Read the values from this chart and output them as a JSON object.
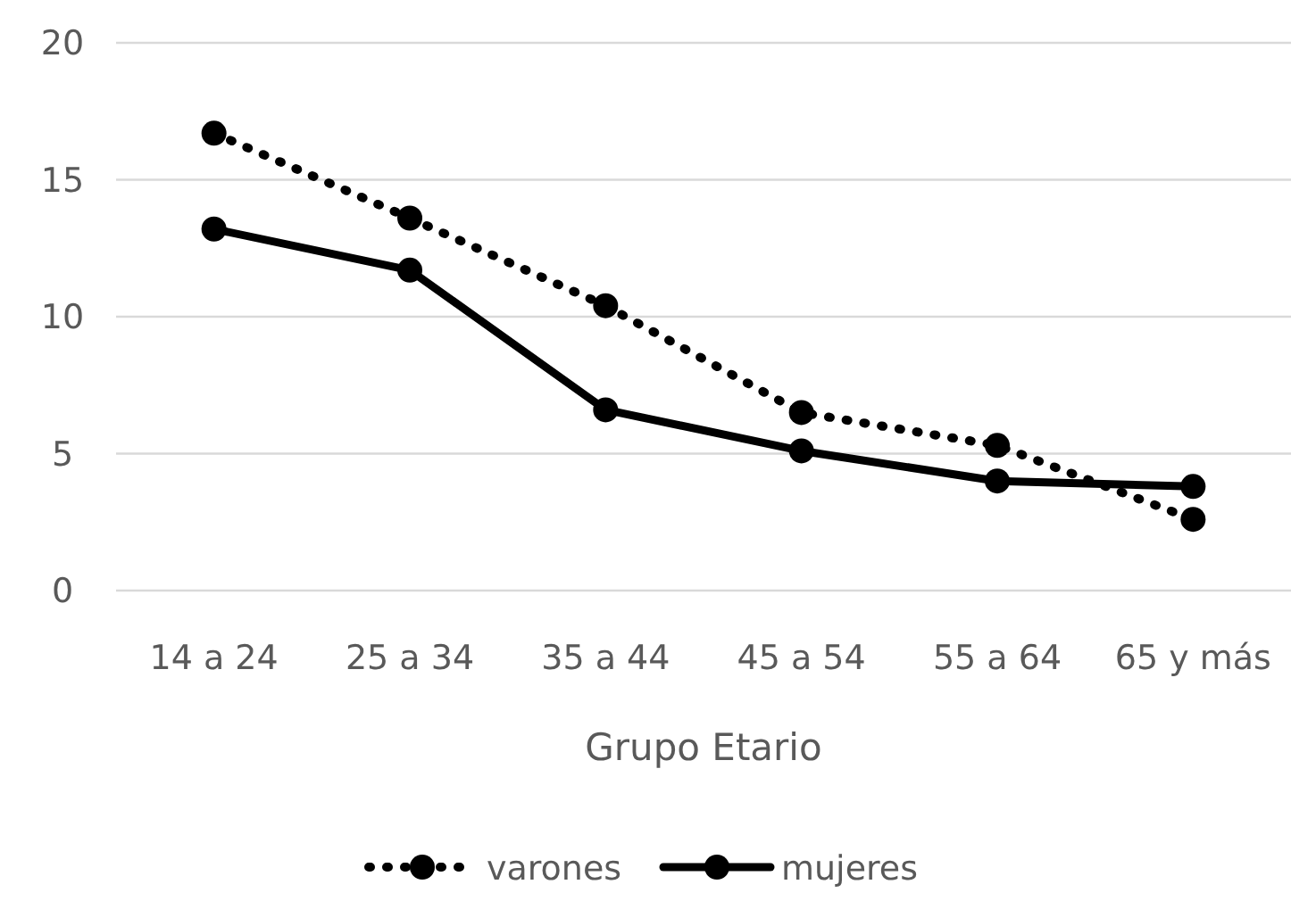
{
  "chart_data": {
    "type": "line",
    "xlabel": "Grupo Etario",
    "categories": [
      "14 a 24",
      "25 a 34",
      "35 a 44",
      "45 a 54",
      "55 a 64",
      "65 y más"
    ],
    "series": [
      {
        "name": "varones",
        "color": "#000000",
        "line_style": "dotted",
        "values": [
          16.7,
          13.6,
          10.4,
          6.5,
          5.3,
          2.6
        ]
      },
      {
        "name": "mujeres",
        "color": "#000000",
        "line_style": "solid",
        "values": [
          13.2,
          11.7,
          6.6,
          5.1,
          4.0,
          3.8
        ]
      }
    ],
    "ylim": [
      0,
      20
    ],
    "yticks": [
      0,
      5,
      10,
      15,
      20
    ],
    "grid": "y",
    "legend": "bottom",
    "marker": "circle"
  }
}
